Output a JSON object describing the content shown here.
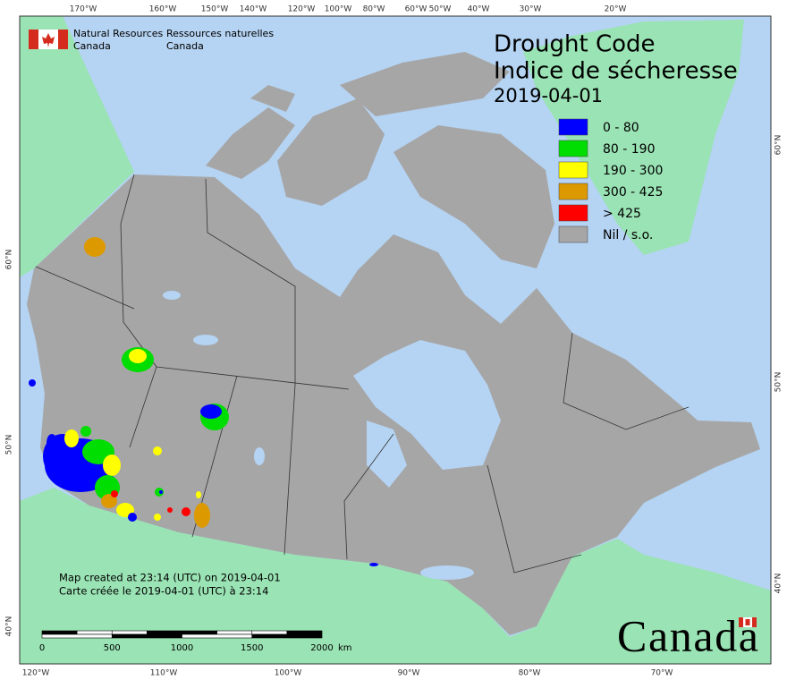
{
  "header": {
    "org_en": [
      "Natural Resources",
      "Canada"
    ],
    "org_fr": [
      "Ressources naturelles",
      "Canada"
    ]
  },
  "title": [
    "Drought Code",
    "Indice de sécheresse"
  ],
  "date": "2019-04-01",
  "legend": [
    {
      "label": "0 - 80",
      "color": "#0000ff"
    },
    {
      "label": "80 - 190",
      "color": "#00dd00"
    },
    {
      "label": "190 - 300",
      "color": "#ffff00"
    },
    {
      "label": "300 - 425",
      "color": "#dd9900"
    },
    {
      "label": "> 425",
      "color": "#ff0000"
    },
    {
      "label": "Nil / s.o.",
      "color": "#a6a6a6"
    }
  ],
  "graticule": {
    "top": [
      "170°W",
      "160°W",
      "150°W",
      "140°W",
      "120°W",
      "100°W",
      "80°W",
      "60°W",
      "50°W",
      "40°W",
      "30°W",
      "20°W"
    ],
    "bottom": [
      "120°W",
      "110°W",
      "100°W",
      "90°W",
      "80°W",
      "70°W"
    ],
    "left": [
      "60°N",
      "50°N",
      "40°N"
    ],
    "right": [
      "60°N",
      "50°N",
      "40°N"
    ]
  },
  "footer": [
    "Map created at 23:14 (UTC) on 2019-04-01",
    "Carte créée le 2019-04-01 (UTC) à 23:14"
  ],
  "scale_bar": {
    "labels": [
      "0",
      "500",
      "1000",
      "1500",
      "2000"
    ],
    "unit": "km"
  },
  "wordmark": "Canada"
}
